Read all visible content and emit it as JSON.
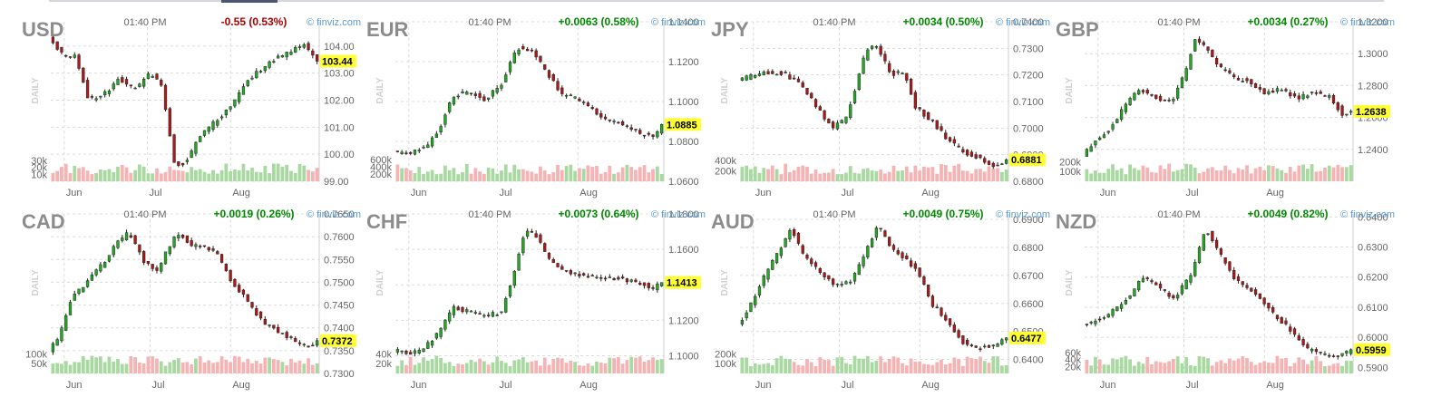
{
  "source_label": "© finviz.com",
  "timeframe_label": "DAILY",
  "colors": {
    "up": "#22aa22",
    "down": "#b01818",
    "up_volume": "#a8d9a0",
    "down_volume": "#f5b3b3",
    "price_badge": "#ffff33",
    "positive_change": "#008800",
    "negative_change": "#aa0000",
    "credit": "#5b9bd5"
  },
  "chart_data": [
    {
      "type": "candlestick",
      "symbol": "USD",
      "time": "01:40 PM",
      "change": "-0.55 (0.53%)",
      "direction": "down",
      "last": 103.44,
      "last_label": "103.44",
      "ylim": [
        99.0,
        104.9
      ],
      "y_ticks": [
        99.0,
        100.0,
        101.0,
        102.0,
        103.0,
        104.0
      ],
      "y_tick_labels": [
        "99.00",
        "100.00",
        "101.00",
        "102.00",
        "103.00",
        "104.00"
      ],
      "x_tick_labels": [
        "Jun",
        "Jul",
        "Aug"
      ],
      "x_tick_positions": [
        0.05,
        0.36,
        0.67
      ],
      "volume_ticks": [
        10000,
        20000,
        30000
      ],
      "volume_tick_labels": [
        "10k",
        "20k",
        "30k"
      ],
      "volume_max": 34000,
      "trend": [
        [
          0,
          104.3
        ],
        [
          0.05,
          103.7
        ],
        [
          0.1,
          103.6
        ],
        [
          0.15,
          102.0
        ],
        [
          0.22,
          102.3
        ],
        [
          0.26,
          102.8
        ],
        [
          0.32,
          102.4
        ],
        [
          0.38,
          103.0
        ],
        [
          0.42,
          102.6
        ],
        [
          0.47,
          99.6
        ],
        [
          0.51,
          99.7
        ],
        [
          0.56,
          100.6
        ],
        [
          0.62,
          101.2
        ],
        [
          0.68,
          101.8
        ],
        [
          0.74,
          102.7
        ],
        [
          0.82,
          103.4
        ],
        [
          0.9,
          103.8
        ],
        [
          0.95,
          104.1
        ],
        [
          1.0,
          103.44
        ]
      ]
    },
    {
      "type": "candlestick",
      "symbol": "EUR",
      "time": "01:40 PM",
      "change": "+0.0063 (0.58%)",
      "direction": "up",
      "last": 1.0885,
      "last_label": "1.0885",
      "ylim": [
        1.06,
        1.14
      ],
      "y_ticks": [
        1.06,
        1.08,
        1.1,
        1.12,
        1.14
      ],
      "y_tick_labels": [
        "1.0600",
        "1.0800",
        "1.1000",
        "1.1200",
        "1.1400"
      ],
      "x_tick_labels": [
        "Jun",
        "Jul",
        "Aug"
      ],
      "x_tick_positions": [
        0.05,
        0.38,
        0.68
      ],
      "volume_ticks": [
        200000,
        400000,
        600000
      ],
      "volume_tick_labels": [
        "200k",
        "400k",
        "600k"
      ],
      "volume_max": 650000,
      "trend": [
        [
          0,
          1.075
        ],
        [
          0.06,
          1.074
        ],
        [
          0.12,
          1.077
        ],
        [
          0.17,
          1.086
        ],
        [
          0.22,
          1.103
        ],
        [
          0.28,
          1.105
        ],
        [
          0.34,
          1.101
        ],
        [
          0.4,
          1.108
        ],
        [
          0.46,
          1.127
        ],
        [
          0.52,
          1.125
        ],
        [
          0.58,
          1.113
        ],
        [
          0.63,
          1.103
        ],
        [
          0.68,
          1.102
        ],
        [
          0.74,
          1.096
        ],
        [
          0.8,
          1.091
        ],
        [
          0.86,
          1.088
        ],
        [
          0.92,
          1.084
        ],
        [
          0.97,
          1.082
        ],
        [
          1.0,
          1.0885
        ]
      ]
    },
    {
      "type": "candlestick",
      "symbol": "JPY",
      "time": "01:40 PM",
      "change": "+0.0034 (0.50%)",
      "direction": "up",
      "last": 0.6881,
      "last_label": "0.6881",
      "ylim": [
        0.68,
        0.74
      ],
      "y_ticks": [
        0.68,
        0.69,
        0.7,
        0.71,
        0.72,
        0.73,
        0.74
      ],
      "y_tick_labels": [
        "0.6800",
        "0.6900",
        "0.7000",
        "0.7100",
        "0.7200",
        "0.7300",
        "0.7400"
      ],
      "x_tick_labels": [
        "Jun",
        "Jul",
        "Aug"
      ],
      "x_tick_positions": [
        0.05,
        0.37,
        0.67
      ],
      "volume_ticks": [
        200000,
        400000
      ],
      "volume_tick_labels": [
        "200k",
        "400k"
      ],
      "volume_max": 450000,
      "trend": [
        [
          0,
          0.718
        ],
        [
          0.06,
          0.72
        ],
        [
          0.12,
          0.721
        ],
        [
          0.18,
          0.72
        ],
        [
          0.24,
          0.716
        ],
        [
          0.3,
          0.707
        ],
        [
          0.35,
          0.7
        ],
        [
          0.4,
          0.703
        ],
        [
          0.44,
          0.716
        ],
        [
          0.48,
          0.73
        ],
        [
          0.52,
          0.731
        ],
        [
          0.57,
          0.72
        ],
        [
          0.62,
          0.721
        ],
        [
          0.66,
          0.708
        ],
        [
          0.72,
          0.703
        ],
        [
          0.78,
          0.696
        ],
        [
          0.84,
          0.691
        ],
        [
          0.9,
          0.689
        ],
        [
          0.96,
          0.685
        ],
        [
          1.0,
          0.6881
        ]
      ]
    },
    {
      "type": "candlestick",
      "symbol": "GBP",
      "time": "01:40 PM",
      "change": "+0.0034 (0.27%)",
      "direction": "up",
      "last": 1.2638,
      "last_label": "1.2638",
      "ylim": [
        1.22,
        1.32
      ],
      "y_ticks": [
        1.24,
        1.26,
        1.28,
        1.3,
        1.32
      ],
      "y_tick_labels": [
        "1.2400",
        "1.2600",
        "1.2800",
        "1.3000",
        "1.3200"
      ],
      "x_tick_labels": [
        "Jun",
        "Jul",
        "Aug"
      ],
      "x_tick_positions": [
        0.05,
        0.37,
        0.67
      ],
      "volume_ticks": [
        100000,
        200000
      ],
      "volume_tick_labels": [
        "100k",
        "200k"
      ],
      "volume_max": 240000,
      "trend": [
        [
          0,
          1.236
        ],
        [
          0.05,
          1.246
        ],
        [
          0.1,
          1.252
        ],
        [
          0.16,
          1.268
        ],
        [
          0.21,
          1.277
        ],
        [
          0.27,
          1.273
        ],
        [
          0.33,
          1.269
        ],
        [
          0.38,
          1.287
        ],
        [
          0.42,
          1.31
        ],
        [
          0.46,
          1.303
        ],
        [
          0.52,
          1.29
        ],
        [
          0.58,
          1.284
        ],
        [
          0.63,
          1.282
        ],
        [
          0.68,
          1.275
        ],
        [
          0.74,
          1.278
        ],
        [
          0.8,
          1.272
        ],
        [
          0.86,
          1.276
        ],
        [
          0.92,
          1.273
        ],
        [
          0.97,
          1.262
        ],
        [
          1.0,
          1.2638
        ]
      ]
    },
    {
      "type": "candlestick",
      "symbol": "CAD",
      "time": "01:40 PM",
      "change": "+0.0019 (0.26%)",
      "direction": "up",
      "last": 0.7372,
      "last_label": "0.7372",
      "ylim": [
        0.73,
        0.765
      ],
      "y_ticks": [
        0.73,
        0.735,
        0.74,
        0.745,
        0.75,
        0.755,
        0.76,
        0.765
      ],
      "y_tick_labels": [
        "0.7300",
        "0.7350",
        "0.7400",
        "0.7450",
        "0.7500",
        "0.7550",
        "0.7600",
        "0.7650"
      ],
      "x_tick_labels": [
        "Jun",
        "Jul",
        "Aug"
      ],
      "x_tick_positions": [
        0.05,
        0.37,
        0.67
      ],
      "volume_ticks": [
        50000,
        100000
      ],
      "volume_tick_labels": [
        "50k",
        "100k"
      ],
      "volume_max": 120000,
      "trend": [
        [
          0,
          0.735
        ],
        [
          0.04,
          0.738
        ],
        [
          0.08,
          0.746
        ],
        [
          0.14,
          0.75
        ],
        [
          0.2,
          0.754
        ],
        [
          0.26,
          0.759
        ],
        [
          0.3,
          0.761
        ],
        [
          0.35,
          0.755
        ],
        [
          0.4,
          0.752
        ],
        [
          0.44,
          0.757
        ],
        [
          0.48,
          0.761
        ],
        [
          0.53,
          0.758
        ],
        [
          0.58,
          0.758
        ],
        [
          0.63,
          0.756
        ],
        [
          0.68,
          0.75
        ],
        [
          0.74,
          0.746
        ],
        [
          0.8,
          0.741
        ],
        [
          0.86,
          0.739
        ],
        [
          0.92,
          0.737
        ],
        [
          0.97,
          0.736
        ],
        [
          1.0,
          0.7372
        ]
      ]
    },
    {
      "type": "candlestick",
      "symbol": "CHF",
      "time": "01:40 PM",
      "change": "+0.0073 (0.64%)",
      "direction": "up",
      "last": 1.1413,
      "last_label": "1.1413",
      "ylim": [
        1.09,
        1.18
      ],
      "y_ticks": [
        1.1,
        1.12,
        1.14,
        1.16,
        1.18
      ],
      "y_tick_labels": [
        "1.1000",
        "1.1200",
        "1.1400",
        "1.1600",
        "1.1800"
      ],
      "x_tick_labels": [
        "Jun",
        "Jul",
        "Aug"
      ],
      "x_tick_positions": [
        0.05,
        0.38,
        0.68
      ],
      "volume_ticks": [
        20000,
        40000
      ],
      "volume_tick_labels": [
        "20k",
        "40k"
      ],
      "volume_max": 48000,
      "trend": [
        [
          0,
          1.103
        ],
        [
          0.06,
          1.101
        ],
        [
          0.12,
          1.105
        ],
        [
          0.17,
          1.113
        ],
        [
          0.22,
          1.127
        ],
        [
          0.28,
          1.125
        ],
        [
          0.34,
          1.123
        ],
        [
          0.4,
          1.124
        ],
        [
          0.45,
          1.147
        ],
        [
          0.49,
          1.17
        ],
        [
          0.53,
          1.168
        ],
        [
          0.58,
          1.155
        ],
        [
          0.63,
          1.149
        ],
        [
          0.68,
          1.146
        ],
        [
          0.74,
          1.145
        ],
        [
          0.8,
          1.144
        ],
        [
          0.86,
          1.143
        ],
        [
          0.92,
          1.141
        ],
        [
          0.97,
          1.138
        ],
        [
          1.0,
          1.1413
        ]
      ]
    },
    {
      "type": "candlestick",
      "symbol": "AUD",
      "time": "01:40 PM",
      "change": "+0.0049 (0.75%)",
      "direction": "up",
      "last": 0.6477,
      "last_label": "0.6477",
      "ylim": [
        0.635,
        0.692
      ],
      "y_ticks": [
        0.64,
        0.65,
        0.66,
        0.67,
        0.68,
        0.69
      ],
      "y_tick_labels": [
        "0.6400",
        "0.6500",
        "0.6600",
        "0.6700",
        "0.6800",
        "0.6900"
      ],
      "x_tick_labels": [
        "Jun",
        "Jul",
        "Aug"
      ],
      "x_tick_positions": [
        0.05,
        0.37,
        0.67
      ],
      "volume_ticks": [
        100000,
        200000
      ],
      "volume_tick_labels": [
        "100k",
        "200k"
      ],
      "volume_max": 240000,
      "trend": [
        [
          0,
          0.652
        ],
        [
          0.05,
          0.66
        ],
        [
          0.1,
          0.67
        ],
        [
          0.16,
          0.68
        ],
        [
          0.2,
          0.687
        ],
        [
          0.24,
          0.678
        ],
        [
          0.3,
          0.672
        ],
        [
          0.36,
          0.666
        ],
        [
          0.42,
          0.668
        ],
        [
          0.48,
          0.679
        ],
        [
          0.52,
          0.688
        ],
        [
          0.57,
          0.68
        ],
        [
          0.62,
          0.676
        ],
        [
          0.67,
          0.672
        ],
        [
          0.72,
          0.66
        ],
        [
          0.78,
          0.654
        ],
        [
          0.84,
          0.646
        ],
        [
          0.9,
          0.644
        ],
        [
          0.96,
          0.645
        ],
        [
          1.0,
          0.6477
        ]
      ]
    },
    {
      "type": "candlestick",
      "symbol": "NZD",
      "time": "01:40 PM",
      "change": "+0.0049 (0.82%)",
      "direction": "up",
      "last": 0.5959,
      "last_label": "0.5959",
      "ylim": [
        0.588,
        0.641
      ],
      "y_ticks": [
        0.59,
        0.6,
        0.61,
        0.62,
        0.63,
        0.64
      ],
      "y_tick_labels": [
        "0.5900",
        "0.6000",
        "0.6100",
        "0.6200",
        "0.6300",
        "0.6400"
      ],
      "x_tick_labels": [
        "Jun",
        "Jul",
        "Aug"
      ],
      "x_tick_positions": [
        0.05,
        0.37,
        0.67
      ],
      "volume_ticks": [
        20000,
        40000,
        60000
      ],
      "volume_tick_labels": [
        "20k",
        "40k",
        "60k"
      ],
      "volume_max": 68000,
      "trend": [
        [
          0,
          0.604
        ],
        [
          0.06,
          0.606
        ],
        [
          0.12,
          0.609
        ],
        [
          0.18,
          0.614
        ],
        [
          0.22,
          0.62
        ],
        [
          0.28,
          0.617
        ],
        [
          0.34,
          0.613
        ],
        [
          0.4,
          0.62
        ],
        [
          0.46,
          0.636
        ],
        [
          0.51,
          0.628
        ],
        [
          0.56,
          0.62
        ],
        [
          0.62,
          0.616
        ],
        [
          0.67,
          0.612
        ],
        [
          0.72,
          0.607
        ],
        [
          0.78,
          0.602
        ],
        [
          0.84,
          0.596
        ],
        [
          0.9,
          0.594
        ],
        [
          0.96,
          0.594
        ],
        [
          1.0,
          0.5959
        ]
      ]
    }
  ]
}
